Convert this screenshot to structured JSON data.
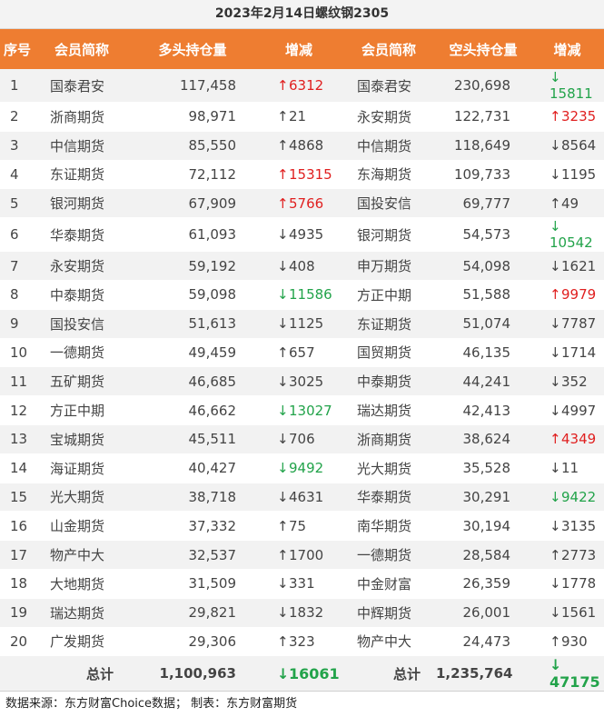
{
  "title": "2023年2月14日螺纹钢2305",
  "headers": [
    "序号",
    "会员简称",
    "多头持仓量",
    "增减",
    "会员简称",
    "空头持仓量",
    "增减"
  ],
  "rows": [
    {
      "idx": "1",
      "long_name": "国泰君安",
      "long_pos": "117,458",
      "long_chg": "6312",
      "long_dir": "up",
      "long_color": "up",
      "short_name": "国泰君安",
      "short_pos": "230,698",
      "short_chg": "15811",
      "short_dir": "down",
      "short_color": "down"
    },
    {
      "idx": "2",
      "long_name": "浙商期货",
      "long_pos": "98,971",
      "long_chg": "21",
      "long_dir": "up",
      "long_color": "neutral",
      "short_name": "永安期货",
      "short_pos": "122,731",
      "short_chg": "3235",
      "short_dir": "up",
      "short_color": "up"
    },
    {
      "idx": "3",
      "long_name": "中信期货",
      "long_pos": "85,550",
      "long_chg": "4868",
      "long_dir": "up",
      "long_color": "neutral",
      "short_name": "中信期货",
      "short_pos": "118,649",
      "short_chg": "8564",
      "short_dir": "down",
      "short_color": "neutral"
    },
    {
      "idx": "4",
      "long_name": "东证期货",
      "long_pos": "72,112",
      "long_chg": "15315",
      "long_dir": "up",
      "long_color": "up",
      "short_name": "东海期货",
      "short_pos": "109,733",
      "short_chg": "1195",
      "short_dir": "down",
      "short_color": "neutral"
    },
    {
      "idx": "5",
      "long_name": "银河期货",
      "long_pos": "67,909",
      "long_chg": "5766",
      "long_dir": "up",
      "long_color": "up",
      "short_name": "国投安信",
      "short_pos": "69,777",
      "short_chg": "49",
      "short_dir": "up",
      "short_color": "neutral"
    },
    {
      "idx": "6",
      "long_name": "华泰期货",
      "long_pos": "61,093",
      "long_chg": "4935",
      "long_dir": "down",
      "long_color": "neutral",
      "short_name": "银河期货",
      "short_pos": "54,573",
      "short_chg": "10542",
      "short_dir": "down",
      "short_color": "down"
    },
    {
      "idx": "7",
      "long_name": "永安期货",
      "long_pos": "59,192",
      "long_chg": "408",
      "long_dir": "down",
      "long_color": "neutral",
      "short_name": "申万期货",
      "short_pos": "54,098",
      "short_chg": "1621",
      "short_dir": "down",
      "short_color": "neutral"
    },
    {
      "idx": "8",
      "long_name": "中泰期货",
      "long_pos": "59,098",
      "long_chg": "11586",
      "long_dir": "down",
      "long_color": "down",
      "short_name": "方正中期",
      "short_pos": "51,588",
      "short_chg": "9979",
      "short_dir": "up",
      "short_color": "up"
    },
    {
      "idx": "9",
      "long_name": "国投安信",
      "long_pos": "51,613",
      "long_chg": "1125",
      "long_dir": "down",
      "long_color": "neutral",
      "short_name": "东证期货",
      "short_pos": "51,074",
      "short_chg": "7787",
      "short_dir": "down",
      "short_color": "neutral"
    },
    {
      "idx": "10",
      "long_name": "一德期货",
      "long_pos": "49,459",
      "long_chg": "657",
      "long_dir": "up",
      "long_color": "neutral",
      "short_name": "国贸期货",
      "short_pos": "46,135",
      "short_chg": "1714",
      "short_dir": "down",
      "short_color": "neutral"
    },
    {
      "idx": "11",
      "long_name": "五矿期货",
      "long_pos": "46,685",
      "long_chg": "3025",
      "long_dir": "down",
      "long_color": "neutral",
      "short_name": "中泰期货",
      "short_pos": "44,241",
      "short_chg": "352",
      "short_dir": "down",
      "short_color": "neutral"
    },
    {
      "idx": "12",
      "long_name": "方正中期",
      "long_pos": "46,662",
      "long_chg": "13027",
      "long_dir": "down",
      "long_color": "down",
      "short_name": "瑞达期货",
      "short_pos": "42,413",
      "short_chg": "4997",
      "short_dir": "down",
      "short_color": "neutral"
    },
    {
      "idx": "13",
      "long_name": "宝城期货",
      "long_pos": "45,511",
      "long_chg": "706",
      "long_dir": "down",
      "long_color": "neutral",
      "short_name": "浙商期货",
      "short_pos": "38,624",
      "short_chg": "4349",
      "short_dir": "up",
      "short_color": "up"
    },
    {
      "idx": "14",
      "long_name": "海证期货",
      "long_pos": "40,427",
      "long_chg": "9492",
      "long_dir": "down",
      "long_color": "down",
      "short_name": "光大期货",
      "short_pos": "35,528",
      "short_chg": "11",
      "short_dir": "down",
      "short_color": "neutral"
    },
    {
      "idx": "15",
      "long_name": "光大期货",
      "long_pos": "38,718",
      "long_chg": "4631",
      "long_dir": "down",
      "long_color": "neutral",
      "short_name": "华泰期货",
      "short_pos": "30,291",
      "short_chg": "9422",
      "short_dir": "down",
      "short_color": "down"
    },
    {
      "idx": "16",
      "long_name": "山金期货",
      "long_pos": "37,332",
      "long_chg": "75",
      "long_dir": "up",
      "long_color": "neutral",
      "short_name": "南华期货",
      "short_pos": "30,194",
      "short_chg": "3135",
      "short_dir": "down",
      "short_color": "neutral"
    },
    {
      "idx": "17",
      "long_name": "物产中大",
      "long_pos": "32,537",
      "long_chg": "1700",
      "long_dir": "up",
      "long_color": "neutral",
      "short_name": "一德期货",
      "short_pos": "28,584",
      "short_chg": "2773",
      "short_dir": "up",
      "short_color": "neutral"
    },
    {
      "idx": "18",
      "long_name": "大地期货",
      "long_pos": "31,509",
      "long_chg": "331",
      "long_dir": "down",
      "long_color": "neutral",
      "short_name": "中金财富",
      "short_pos": "26,359",
      "short_chg": "1778",
      "short_dir": "down",
      "short_color": "neutral"
    },
    {
      "idx": "19",
      "long_name": "瑞达期货",
      "long_pos": "29,821",
      "long_chg": "1832",
      "long_dir": "down",
      "long_color": "neutral",
      "short_name": "中辉期货",
      "short_pos": "26,001",
      "short_chg": "1561",
      "short_dir": "down",
      "short_color": "neutral"
    },
    {
      "idx": "20",
      "long_name": "广发期货",
      "long_pos": "29,306",
      "long_chg": "323",
      "long_dir": "up",
      "long_color": "neutral",
      "short_name": "物产中大",
      "short_pos": "24,473",
      "short_chg": "930",
      "short_dir": "up",
      "short_color": "neutral"
    }
  ],
  "totals": {
    "label_long": "总计",
    "long_pos": "1,100,963",
    "long_chg": "16061",
    "long_dir": "down",
    "label_short": "总计",
    "short_pos": "1,235,764",
    "short_chg": "47175",
    "short_dir": "down"
  },
  "arrows": {
    "up": "↑",
    "down": "↓"
  },
  "colors": {
    "header_bg": "#ee7d31",
    "up": "#e02020",
    "down": "#22a34a",
    "row_alt": "#f2f2f2"
  },
  "footer": "数据来源：东方财富Choice数据； 制表：东方财富期货"
}
